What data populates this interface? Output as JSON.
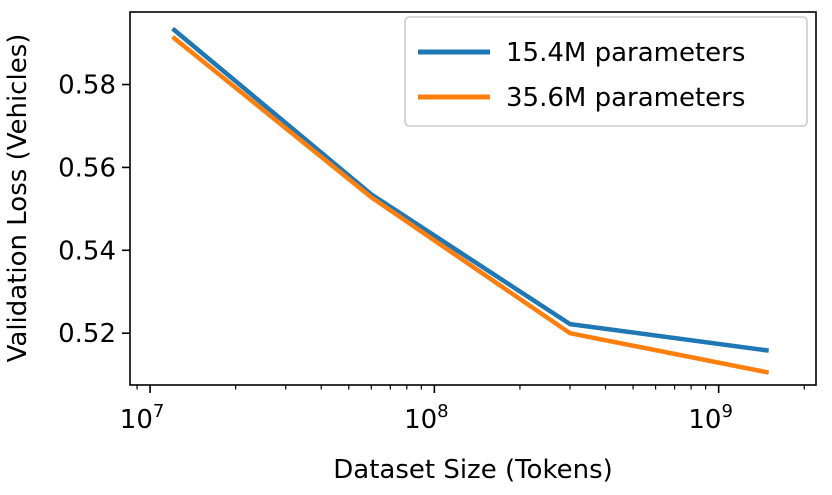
{
  "chart_data": {
    "type": "line",
    "xlabel": "Dataset Size (Tokens)",
    "ylabel": "Validation Loss (Vehicles)",
    "x_scale": "log",
    "xlim": [
      8500000,
      2200000000
    ],
    "ylim": [
      0.5075,
      0.5975
    ],
    "x_major_ticks": [
      {
        "value": 10000000,
        "base": "10",
        "exp": "7"
      },
      {
        "value": 100000000,
        "base": "10",
        "exp": "8"
      },
      {
        "value": 1000000000,
        "base": "10",
        "exp": "9"
      }
    ],
    "y_ticks": [
      {
        "value": 0.52,
        "label": "0.52"
      },
      {
        "value": 0.54,
        "label": "0.54"
      },
      {
        "value": 0.56,
        "label": "0.56"
      },
      {
        "value": 0.58,
        "label": "0.58"
      }
    ],
    "grid": false,
    "legend_position": "top-right",
    "series": [
      {
        "name": "15.4M parameters",
        "color": "#1f77b4",
        "x": [
          12000000,
          60000000,
          300000000,
          1500000000
        ],
        "y": [
          0.5935,
          0.5535,
          0.5222,
          0.5158
        ]
      },
      {
        "name": "35.6M parameters",
        "color": "#ff7f0e",
        "x": [
          12000000,
          60000000,
          300000000,
          1500000000
        ],
        "y": [
          0.5915,
          0.5528,
          0.52,
          0.5105
        ]
      }
    ]
  }
}
